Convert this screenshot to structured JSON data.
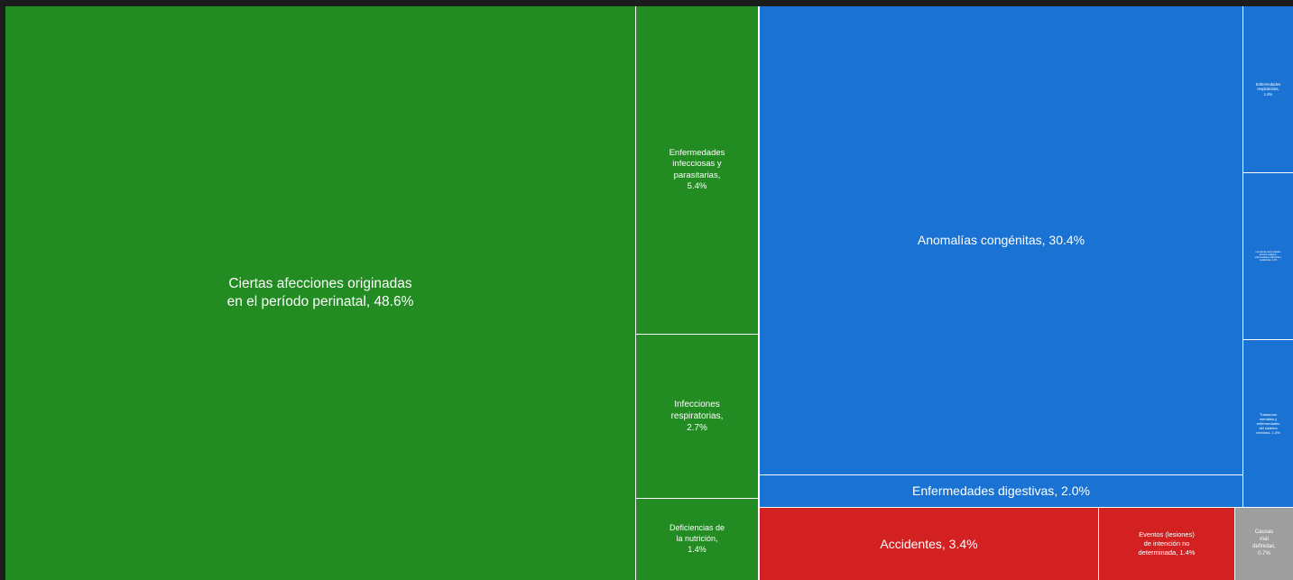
{
  "chart_data": {
    "type": "treemap",
    "colors": {
      "green": "#228b22",
      "blue": "#1a73d3",
      "red": "#d32020",
      "gray": "#9e9e9e"
    },
    "tiles": [
      {
        "label": "Ciertas afecciones originadas\nen el período perinatal, 48.6%",
        "value": 48.6,
        "color": "green"
      },
      {
        "label": "Enfermedades\ninfecciosas y\nparasitarias,\n5.4%",
        "value": 5.4,
        "color": "green"
      },
      {
        "label": "Infecciones\nrespiratorias,\n2.7%",
        "value": 2.7,
        "color": "green"
      },
      {
        "label": "Deficiencias de\nla nutrición,\n1.4%",
        "value": 1.4,
        "color": "green"
      },
      {
        "label": "Anomalías congénitas, 30.4%",
        "value": 30.4,
        "color": "blue"
      },
      {
        "label": "Enfermedades digestivas, 2.0%",
        "value": 2.0,
        "color": "blue"
      },
      {
        "label": "Enfermedades\nrespiratorias,\n1.4%",
        "value": 1.4,
        "color": "blue"
      },
      {
        "label": "Las demás enfermedades\ntumores malignos,\nenfermedades endocrinas y\nmetabólicas, 1.4%",
        "value": 1.4,
        "color": "blue"
      },
      {
        "label": "Trastornos\nmentales y\nenfermedades\ndel sistema\nnervioso, 1.4%",
        "value": 1.4,
        "color": "blue"
      },
      {
        "label": "Accidentes, 3.4%",
        "value": 3.4,
        "color": "red"
      },
      {
        "label": "Eventos (lesiones)\nde intención no\ndeterminada, 1.4%",
        "value": 1.4,
        "color": "red"
      },
      {
        "label": "Causas\nmal\ndefinidas,\n0.7%",
        "value": 0.7,
        "color": "gray"
      }
    ]
  }
}
